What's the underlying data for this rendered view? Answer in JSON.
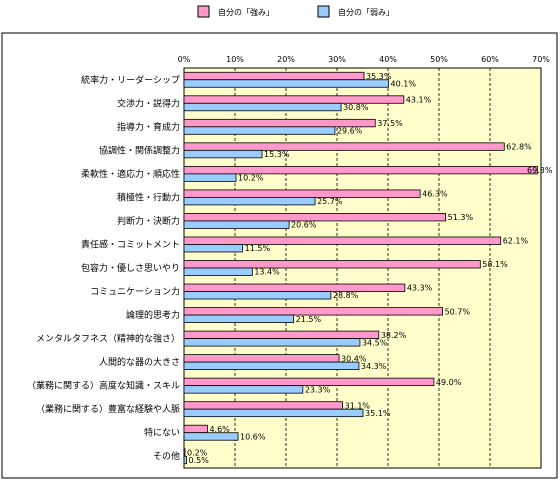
{
  "chart_data": {
    "type": "bar",
    "orientation": "horizontal",
    "legend_position": "top",
    "grid": true,
    "xlim": [
      0,
      70
    ],
    "tick_values": [
      0,
      10,
      20,
      30,
      40,
      50,
      60,
      70
    ],
    "tick_labels": [
      "0%",
      "10%",
      "20%",
      "30%",
      "40%",
      "50%",
      "60%",
      "70%"
    ],
    "categories": [
      "統率力・リーダーシップ",
      "交渉力・説得力",
      "指導力・育成力",
      "協調性・関係調整力",
      "柔軟性・適応力・順応性",
      "積極性・行動力",
      "判断力・決断力",
      "責任感・コミットメント",
      "包容力・優しさ思いやり",
      "コミュニケーション力",
      "論理的思考力",
      "メンタルタフネス（精神的な強さ）",
      "人間的な器の大きさ",
      "（業務に関する）高度な知識・スキル",
      "（業務に関する）豊富な経験や人脈",
      "特にない",
      "その他"
    ],
    "series": [
      {
        "name": "自分の「強み」",
        "color": "#ff99cc",
        "values": [
          35.3,
          43.1,
          37.5,
          62.8,
          69.3,
          46.3,
          51.3,
          62.1,
          58.1,
          43.3,
          50.7,
          38.2,
          30.4,
          49.0,
          31.1,
          4.6,
          0.2
        ],
        "labels": [
          "35.3%",
          "43.1%",
          "37.5%",
          "62.8%",
          "69.3%",
          "46.3%",
          "51.3%",
          "62.1%",
          "58.1%",
          "43.3%",
          "50.7%",
          "38.2%",
          "30.4%",
          "49.0%",
          "31.1%",
          "4.6%",
          "0.2%"
        ]
      },
      {
        "name": "自分の「弱み」",
        "color": "#99ccff",
        "values": [
          40.1,
          30.8,
          29.6,
          15.3,
          10.2,
          25.7,
          20.6,
          11.5,
          13.4,
          28.8,
          21.5,
          34.5,
          34.3,
          23.3,
          35.1,
          10.6,
          0.5
        ],
        "labels": [
          "40.1%",
          "30.8%",
          "29.6%",
          "15.3%",
          "10.2%",
          "25.7%",
          "20.6%",
          "11.5%",
          "13.4%",
          "28.8%",
          "21.5%",
          "34.5%",
          "34.3%",
          "23.3%",
          "35.1%",
          "10.6%",
          "0.5%"
        ]
      }
    ]
  }
}
